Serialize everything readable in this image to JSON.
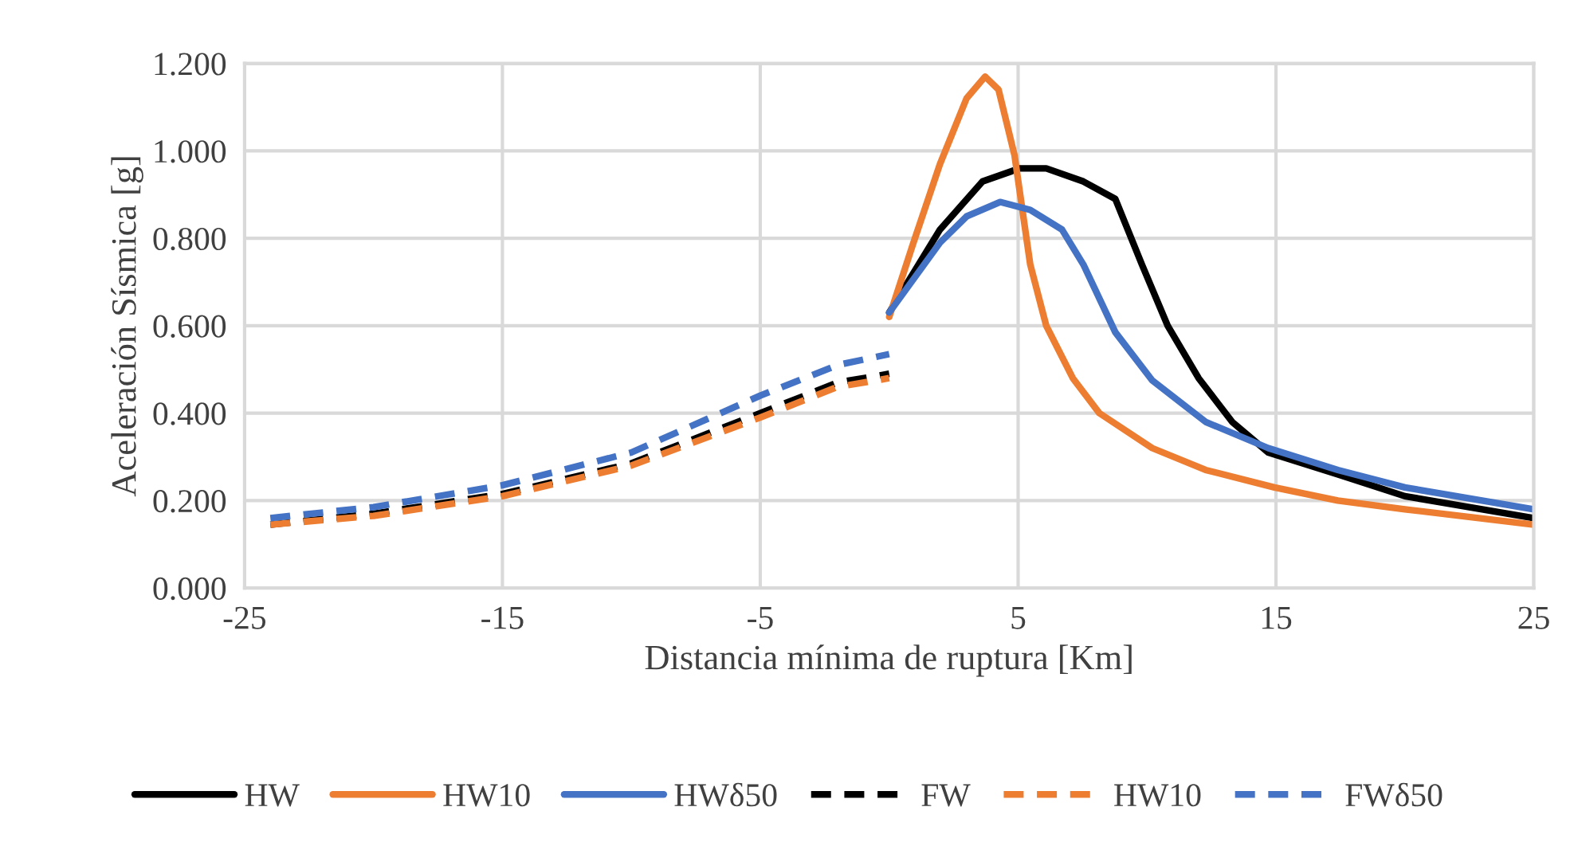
{
  "chart_data": {
    "type": "line",
    "xlabel": "Distancia mínima de ruptura [Km]",
    "ylabel": "Aceleración Sísmica [g]",
    "xlim": [
      -25,
      25
    ],
    "xticks": [
      -25,
      -15,
      -5,
      5,
      15,
      25
    ],
    "ylim": [
      0,
      1.2
    ],
    "yticks": [
      {
        "value": 0,
        "label": "0.000"
      },
      {
        "value": 0.2,
        "label": "0.200"
      },
      {
        "value": 0.4,
        "label": "0.400"
      },
      {
        "value": 0.6,
        "label": "0.600"
      },
      {
        "value": 0.8,
        "label": "0.800"
      },
      {
        "value": 1.0,
        "label": "1.000"
      },
      {
        "value": 1.2,
        "label": "1.200"
      }
    ],
    "grid": true,
    "legend": "bottom",
    "marker": "none",
    "series": [
      {
        "name": "HW",
        "color": "#000000",
        "line_style": "solid",
        "x": [
          0,
          1.97,
          3.62,
          5.06,
          6.09,
          7.53,
          8.77,
          9.8,
          10.8,
          12.0,
          13.3,
          14.7,
          17.4,
          20,
          25
        ],
        "values": [
          0.63,
          0.82,
          0.93,
          0.96,
          0.96,
          0.93,
          0.89,
          0.74,
          0.6,
          0.48,
          0.38,
          0.31,
          0.26,
          0.21,
          0.16
        ]
      },
      {
        "name": "HW10",
        "color": "#ed7d31",
        "line_style": "solid",
        "x": [
          0,
          0.94,
          1.97,
          3.0,
          3.72,
          4.24,
          4.86,
          5.47,
          6.09,
          7.12,
          8.15,
          10.2,
          12.27,
          14.94,
          17.4,
          20,
          25
        ],
        "values": [
          0.62,
          0.79,
          0.97,
          1.12,
          1.17,
          1.14,
          0.99,
          0.74,
          0.6,
          0.48,
          0.4,
          0.32,
          0.27,
          0.23,
          0.2,
          0.18,
          0.145
        ]
      },
      {
        "name": "HWδ50",
        "color": "#4472c4",
        "line_style": "solid",
        "x": [
          0,
          1.97,
          3.0,
          4.3,
          5.47,
          6.7,
          7.53,
          8.77,
          10.2,
          12.27,
          14.7,
          17.4,
          20,
          25
        ],
        "values": [
          0.63,
          0.79,
          0.85,
          0.883,
          0.865,
          0.82,
          0.74,
          0.585,
          0.475,
          0.38,
          0.32,
          0.27,
          0.23,
          0.18
        ]
      },
      {
        "name": "FW",
        "color": "#000000",
        "line_style": "dashed",
        "x": [
          -24,
          -20,
          -15,
          -10,
          -5,
          -2,
          0
        ],
        "values": [
          0.145,
          0.17,
          0.215,
          0.285,
          0.4,
          0.47,
          0.49
        ]
      },
      {
        "name": "HW10",
        "color": "#ed7d31",
        "line_style": "dashed",
        "x": [
          -24,
          -20,
          -15,
          -10,
          -5,
          -2,
          0
        ],
        "values": [
          0.145,
          0.165,
          0.21,
          0.28,
          0.39,
          0.46,
          0.48
        ]
      },
      {
        "name": "FWδ50",
        "color": "#4472c4",
        "line_style": "dashed",
        "x": [
          -24,
          -20,
          -15,
          -10,
          -5,
          -2,
          0
        ],
        "values": [
          0.16,
          0.185,
          0.235,
          0.31,
          0.44,
          0.51,
          0.535
        ]
      }
    ]
  }
}
